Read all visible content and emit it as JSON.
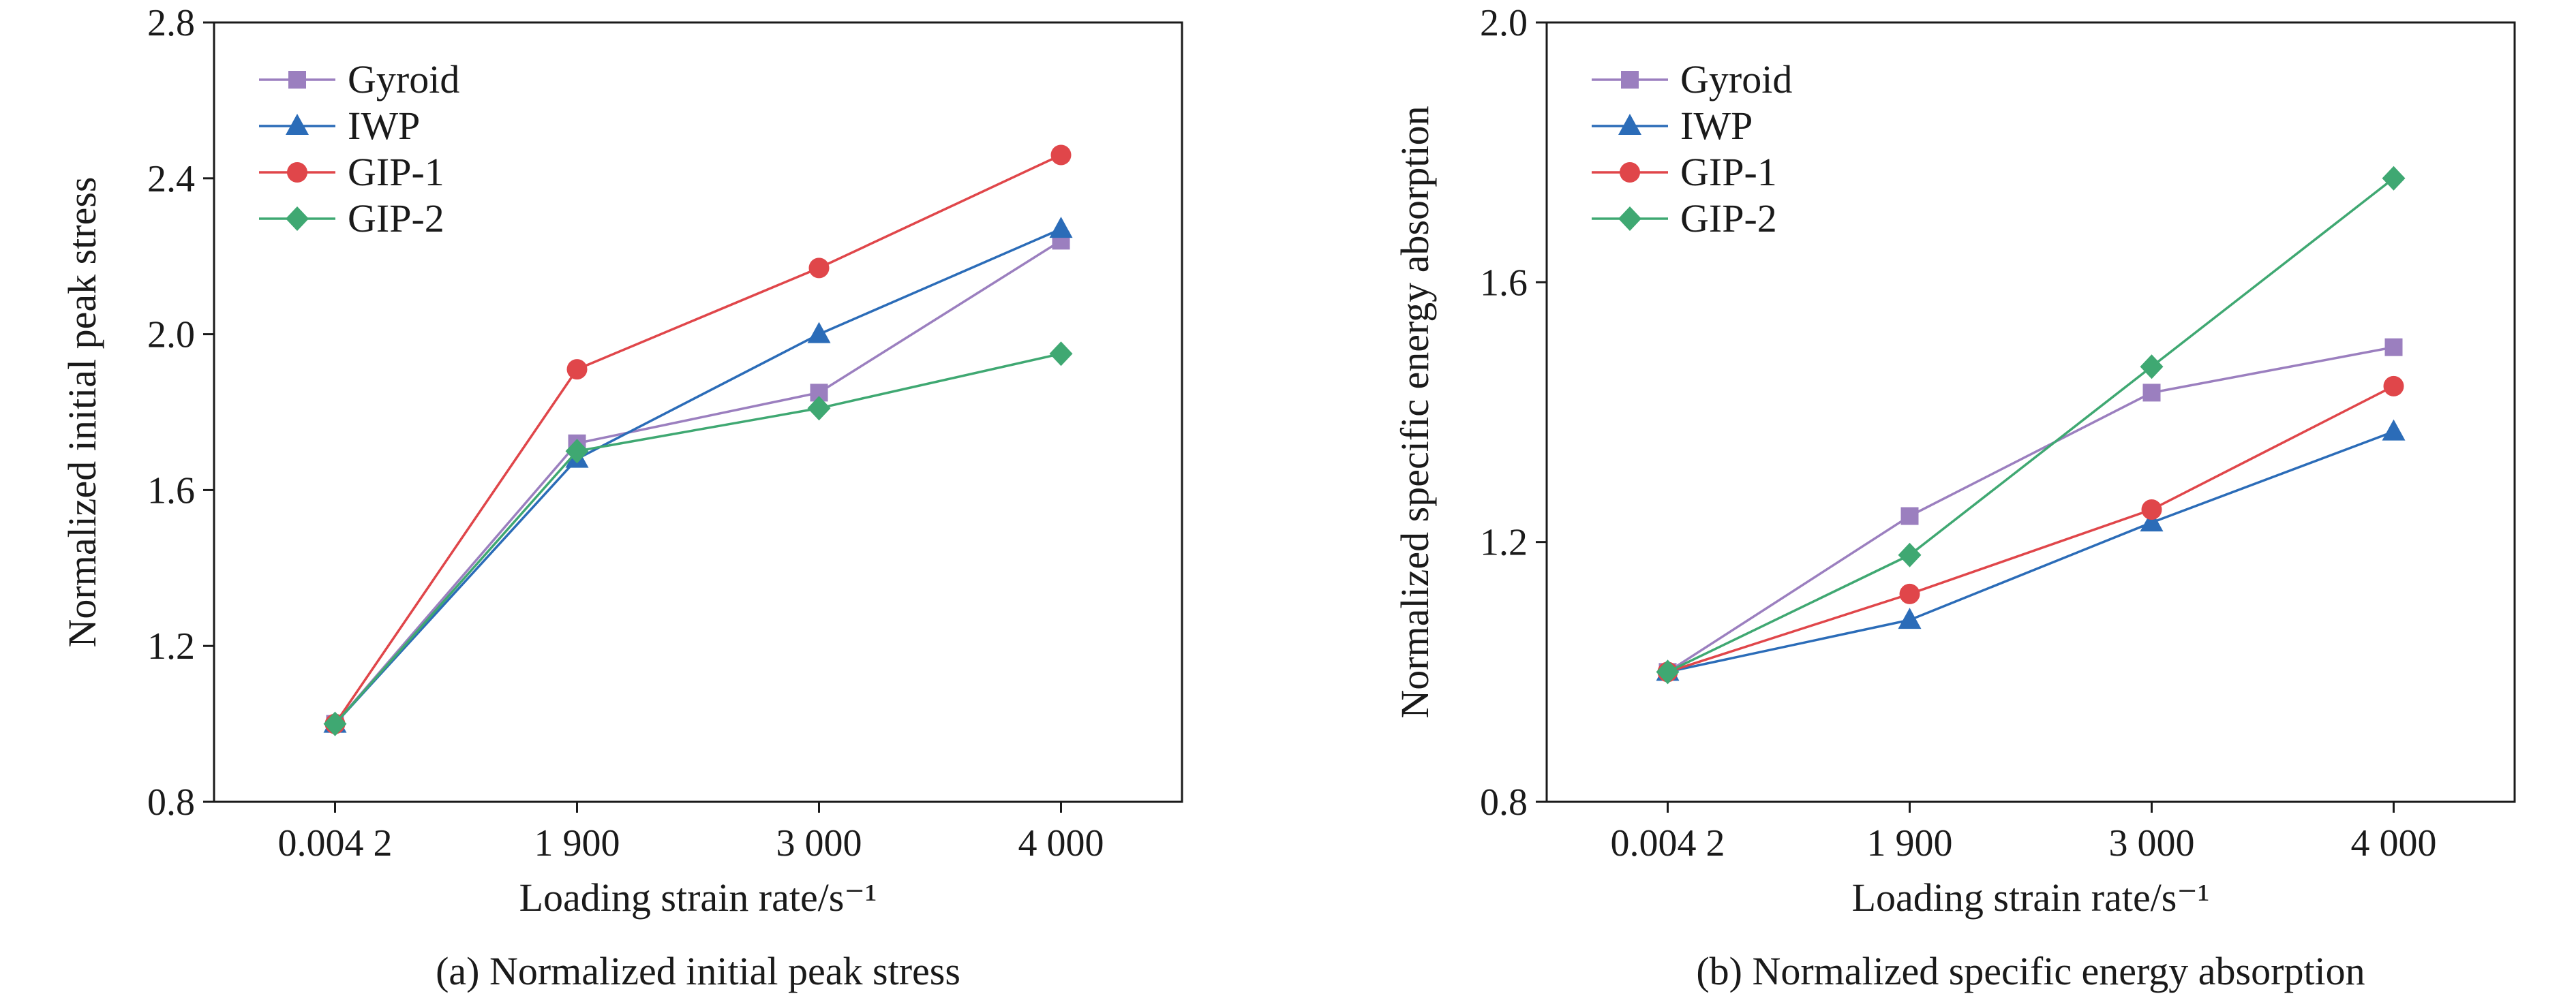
{
  "chart_data": [
    {
      "type": "line",
      "caption": "(a) Normalized initial peak stress",
      "xlabel": "Loading strain rate/s⁻¹",
      "ylabel": "Normalized initial peak stress",
      "categories": [
        "0.004 2",
        "1 900",
        "3 000",
        "4 000"
      ],
      "ylim": [
        0.8,
        2.8
      ],
      "yticks": [
        "0.8",
        "1.2",
        "1.6",
        "2.0",
        "2.4",
        "2.8"
      ],
      "grid": false,
      "legend_position": "top-left",
      "series": [
        {
          "name": "Gyroid",
          "marker": "square",
          "color": "#9b7fbf",
          "values": [
            1.0,
            1.72,
            1.85,
            2.24
          ]
        },
        {
          "name": "IWP",
          "marker": "triangle",
          "color": "#2b6cb8",
          "values": [
            1.0,
            1.68,
            2.0,
            2.27
          ]
        },
        {
          "name": "GIP-1",
          "marker": "circle",
          "color": "#e0464a",
          "values": [
            1.0,
            1.91,
            2.17,
            2.46
          ]
        },
        {
          "name": "GIP-2",
          "marker": "diamond",
          "color": "#3fa872",
          "values": [
            1.0,
            1.7,
            1.81,
            1.95
          ]
        }
      ]
    },
    {
      "type": "line",
      "caption": "(b) Normalized specific energy absorption",
      "xlabel": "Loading strain rate/s⁻¹",
      "ylabel": "Normalized specific energy absorption",
      "categories": [
        "0.004 2",
        "1 900",
        "3 000",
        "4 000"
      ],
      "ylim": [
        0.8,
        2.0
      ],
      "yticks": [
        "0.8",
        "1.2",
        "1.6",
        "2.0"
      ],
      "grid": false,
      "legend_position": "top-left",
      "series": [
        {
          "name": "Gyroid",
          "marker": "square",
          "color": "#9b7fbf",
          "values": [
            1.0,
            1.24,
            1.43,
            1.5
          ]
        },
        {
          "name": "IWP",
          "marker": "triangle",
          "color": "#2b6cb8",
          "values": [
            1.0,
            1.08,
            1.23,
            1.37
          ]
        },
        {
          "name": "GIP-1",
          "marker": "circle",
          "color": "#e0464a",
          "values": [
            1.0,
            1.12,
            1.25,
            1.44
          ]
        },
        {
          "name": "GIP-2",
          "marker": "diamond",
          "color": "#3fa872",
          "values": [
            1.0,
            1.18,
            1.47,
            1.76
          ]
        }
      ]
    }
  ]
}
